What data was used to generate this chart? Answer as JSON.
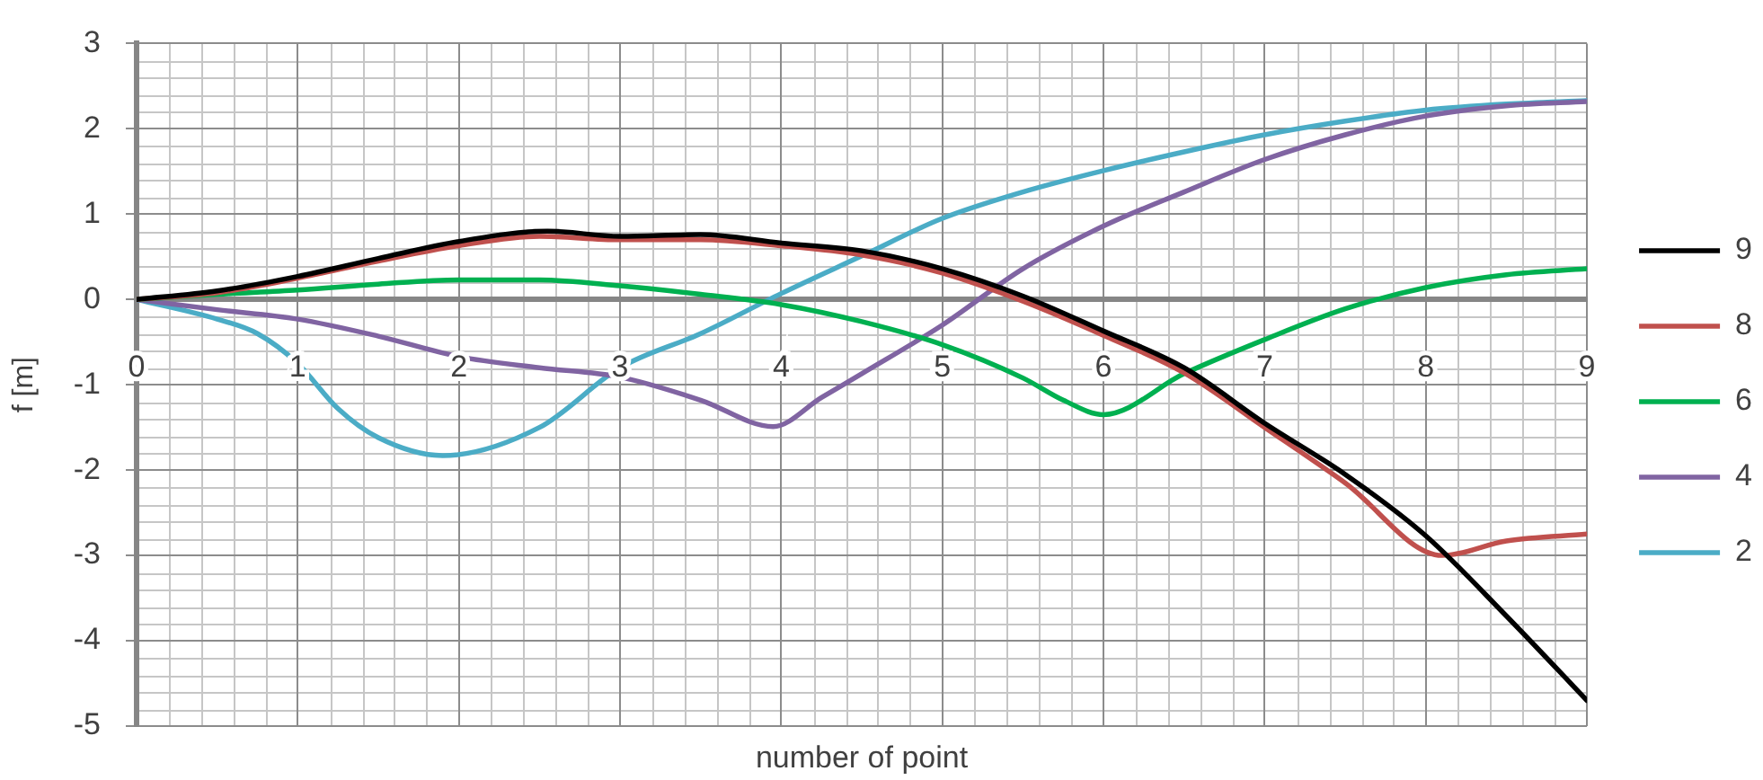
{
  "chart_data": {
    "type": "line",
    "xlabel": "number of point",
    "ylabel": "f [m]",
    "xlim": [
      0,
      9
    ],
    "ylim": [
      -5,
      3
    ],
    "xticks": [
      0,
      1,
      2,
      3,
      4,
      5,
      6,
      7,
      8,
      9
    ],
    "yticks": [
      -5,
      -4,
      -3,
      -2,
      -1,
      0,
      1,
      2,
      3
    ],
    "grid": true,
    "legend": "right",
    "marker": "none",
    "line_style": "solid",
    "series": [
      {
        "name": "9",
        "color": "#000000",
        "x": [
          0,
          0.5,
          1,
          1.5,
          2,
          2.55,
          3,
          3.5,
          4,
          4.5,
          5,
          5.5,
          6,
          6.5,
          7,
          7.5,
          8,
          8.5,
          9
        ],
        "values": [
          0,
          0.1,
          0.27,
          0.48,
          0.68,
          0.8,
          0.74,
          0.76,
          0.66,
          0.57,
          0.36,
          0.04,
          -0.37,
          -0.8,
          -1.45,
          -2.05,
          -2.77,
          -3.71,
          -4.7
        ]
      },
      {
        "name": "8",
        "color": "#c0504d",
        "x": [
          0,
          0.5,
          1,
          1.5,
          2,
          2.5,
          3,
          3.5,
          4,
          4.5,
          5,
          5.5,
          6,
          6.5,
          7,
          7.5,
          8.1,
          8.5,
          9
        ],
        "values": [
          0,
          0.08,
          0.25,
          0.45,
          0.63,
          0.74,
          0.7,
          0.7,
          0.63,
          0.52,
          0.31,
          -0.02,
          -0.42,
          -0.86,
          -1.5,
          -2.15,
          -3.0,
          -2.83,
          -2.75
        ]
      },
      {
        "name": "6",
        "color": "#00b050",
        "x": [
          0,
          0.5,
          1,
          1.5,
          2,
          2.5,
          3,
          3.5,
          4,
          4.5,
          5,
          5.5,
          5.75,
          6,
          6.5,
          7,
          7.5,
          8,
          8.5,
          9
        ],
        "values": [
          0,
          0.06,
          0.11,
          0.18,
          0.23,
          0.23,
          0.16,
          0.06,
          -0.06,
          -0.26,
          -0.53,
          -0.92,
          -1.18,
          -1.35,
          -0.87,
          -0.47,
          -0.11,
          0.14,
          0.29,
          0.36
        ]
      },
      {
        "name": "4",
        "color": "#8064a2",
        "x": [
          0,
          0.5,
          1,
          1.5,
          2,
          2.5,
          3,
          3.5,
          3.95,
          4.25,
          4.5,
          5,
          5.5,
          6,
          6.5,
          7,
          7.5,
          8,
          8.5,
          9
        ],
        "values": [
          0,
          -0.12,
          -0.23,
          -0.43,
          -0.67,
          -0.8,
          -0.91,
          -1.18,
          -1.49,
          -1.15,
          -0.87,
          -0.3,
          0.36,
          0.86,
          1.26,
          1.64,
          1.93,
          2.15,
          2.27,
          2.32
        ]
      },
      {
        "name": "2",
        "color": "#4bacc6",
        "x": [
          0,
          0.5,
          0.75,
          1,
          1.25,
          1.5,
          1.9,
          2.5,
          3,
          3.5,
          4,
          4.5,
          5,
          5.5,
          6,
          6.5,
          7,
          7.5,
          8,
          8.5,
          9
        ],
        "values": [
          0,
          -0.23,
          -0.4,
          -0.75,
          -1.28,
          -1.62,
          -1.83,
          -1.5,
          -0.8,
          -0.4,
          0.07,
          0.51,
          0.95,
          1.26,
          1.51,
          1.73,
          1.93,
          2.09,
          2.22,
          2.29,
          2.33
        ]
      }
    ]
  }
}
